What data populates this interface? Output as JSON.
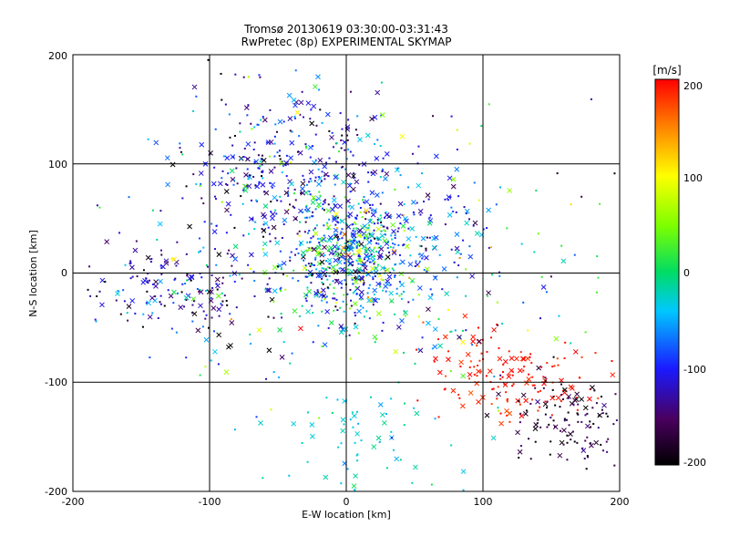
{
  "chart_data": {
    "type": "scatter",
    "title": "Tromsø 20130619 03:30:00-03:31:43",
    "subtitle": "RwPretec (8p) EXPERIMENTAL SKYMAP",
    "xlabel": "E-W location [km]",
    "ylabel": "N-S location [km]",
    "xlim": [
      -200,
      200
    ],
    "ylim": [
      -200,
      200
    ],
    "xticks": [
      "-200",
      "-100",
      "0",
      "100",
      "200"
    ],
    "yticks": [
      "-200",
      "-100",
      "0",
      "100",
      "200"
    ],
    "grid": true,
    "colorbar": {
      "label": "[m/s]",
      "range": [
        -200,
        200
      ],
      "ticks": [
        "200",
        "100",
        "0",
        "-100",
        "-200"
      ],
      "colormap": "black-purple-blue-cyan-green-yellow-red"
    },
    "markers": [
      "x",
      "dot"
    ],
    "clusters": [
      {
        "x": 0,
        "y": 15,
        "sx": 22,
        "sy": 25,
        "n": 420,
        "v_mean": -40,
        "v_sd": 80
      },
      {
        "x": -40,
        "y": 90,
        "sx": 35,
        "sy": 35,
        "n": 360,
        "v_mean": -110,
        "v_sd": 50
      },
      {
        "x": -120,
        "y": -15,
        "sx": 35,
        "sy": 25,
        "n": 180,
        "v_mean": -130,
        "v_sd": 50
      },
      {
        "x": 40,
        "y": 40,
        "sx": 30,
        "sy": 35,
        "n": 170,
        "v_mean": -100,
        "v_sd": 40
      },
      {
        "x": 25,
        "y": -20,
        "sx": 60,
        "sy": 40,
        "n": 150,
        "v_mean": -30,
        "v_sd": 70
      },
      {
        "x": 125,
        "y": -95,
        "sx": 32,
        "sy": 22,
        "n": 150,
        "v_mean": 190,
        "v_sd": 12
      },
      {
        "x": 165,
        "y": -135,
        "sx": 22,
        "sy": 20,
        "n": 120,
        "v_mean": -185,
        "v_sd": 20
      },
      {
        "x": 10,
        "y": -150,
        "sx": 30,
        "sy": 28,
        "n": 70,
        "v_mean": -30,
        "v_sd": 15
      },
      {
        "x": 0,
        "y": 30,
        "sx": 100,
        "sy": 80,
        "n": 200,
        "v_mean": -50,
        "v_sd": 90
      }
    ]
  }
}
